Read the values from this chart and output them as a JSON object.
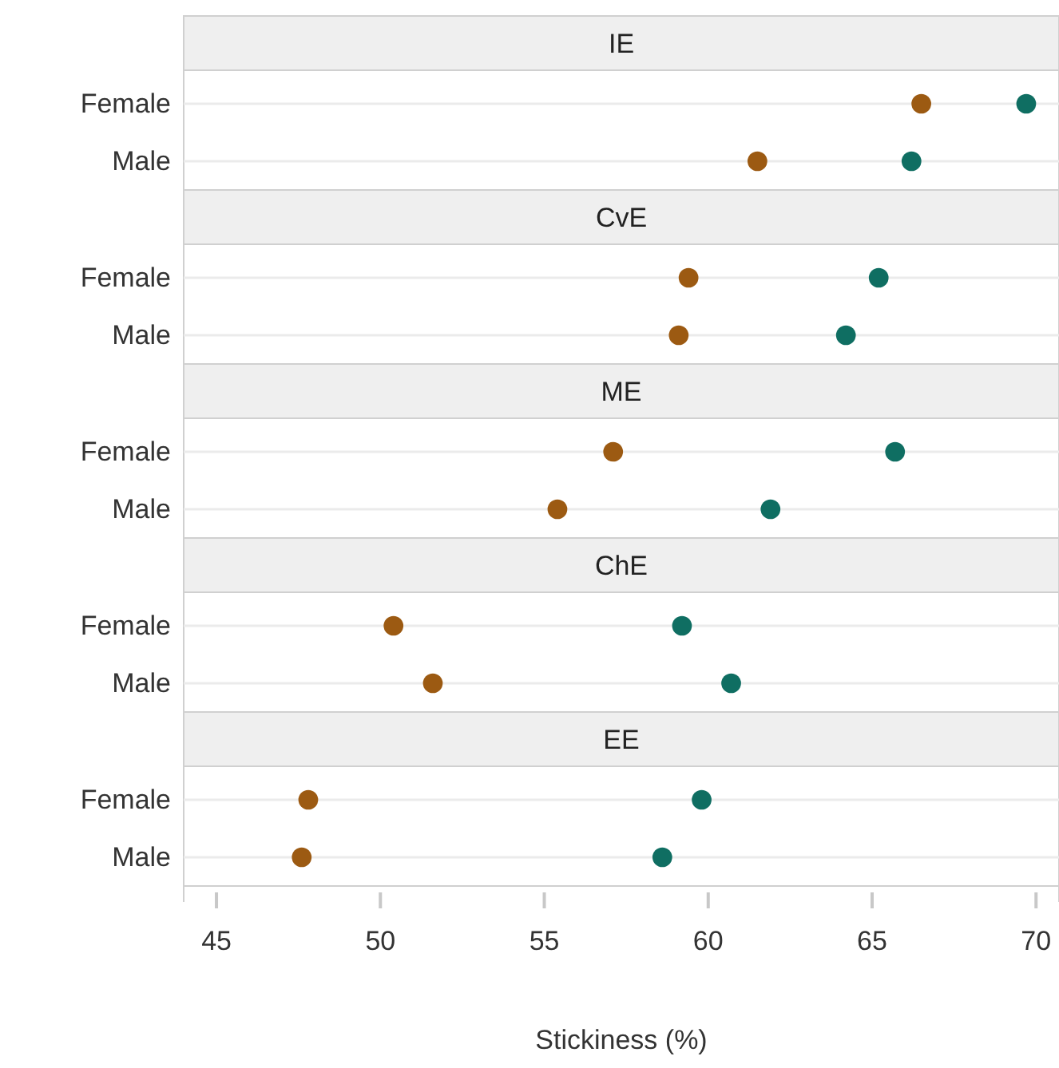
{
  "chart_data": [
    {
      "type": "scatter",
      "orientation": "horizontal",
      "title": "IE",
      "categories": [
        "Female",
        "Male"
      ],
      "marker": "circle",
      "grid": "y",
      "tick_labels": "y",
      "xlim": [
        44,
        70.7
      ],
      "series": [
        {
          "color": "#9c5a12",
          "values": [
            66.5,
            61.5
          ]
        },
        {
          "color": "#0f6e62",
          "values": [
            69.7,
            66.2
          ]
        }
      ]
    },
    {
      "type": "scatter",
      "orientation": "horizontal",
      "title": "CvE",
      "categories": [
        "Female",
        "Male"
      ],
      "marker": "circle",
      "grid": "y",
      "tick_labels": "y",
      "xlim": [
        44,
        70.7
      ],
      "series": [
        {
          "color": "#9c5a12",
          "values": [
            59.4,
            59.1
          ]
        },
        {
          "color": "#0f6e62",
          "values": [
            65.2,
            64.2
          ]
        }
      ]
    },
    {
      "type": "scatter",
      "orientation": "horizontal",
      "title": "ME",
      "categories": [
        "Female",
        "Male"
      ],
      "marker": "circle",
      "grid": "y",
      "tick_labels": "y",
      "xlim": [
        44,
        70.7
      ],
      "series": [
        {
          "color": "#9c5a12",
          "values": [
            57.1,
            55.4
          ]
        },
        {
          "color": "#0f6e62",
          "values": [
            65.7,
            61.9
          ]
        }
      ]
    },
    {
      "type": "scatter",
      "orientation": "horizontal",
      "title": "ChE",
      "categories": [
        "Female",
        "Male"
      ],
      "marker": "circle",
      "grid": "y",
      "tick_labels": "y",
      "xlim": [
        44,
        70.7
      ],
      "series": [
        {
          "color": "#9c5a12",
          "values": [
            50.4,
            51.6
          ]
        },
        {
          "color": "#0f6e62",
          "values": [
            59.2,
            60.7
          ]
        }
      ]
    },
    {
      "type": "scatter",
      "orientation": "horizontal",
      "title": "EE",
      "categories": [
        "Female",
        "Male"
      ],
      "marker": "circle",
      "grid": "y",
      "xlabel": "Stickiness (%)",
      "xlim": [
        44,
        70.7
      ],
      "xticks": [
        45,
        50,
        55,
        60,
        65,
        70
      ],
      "series": [
        {
          "color": "#9c5a12",
          "values": [
            47.8,
            47.6
          ]
        },
        {
          "color": "#0f6e62",
          "values": [
            59.8,
            58.6
          ]
        }
      ]
    }
  ]
}
